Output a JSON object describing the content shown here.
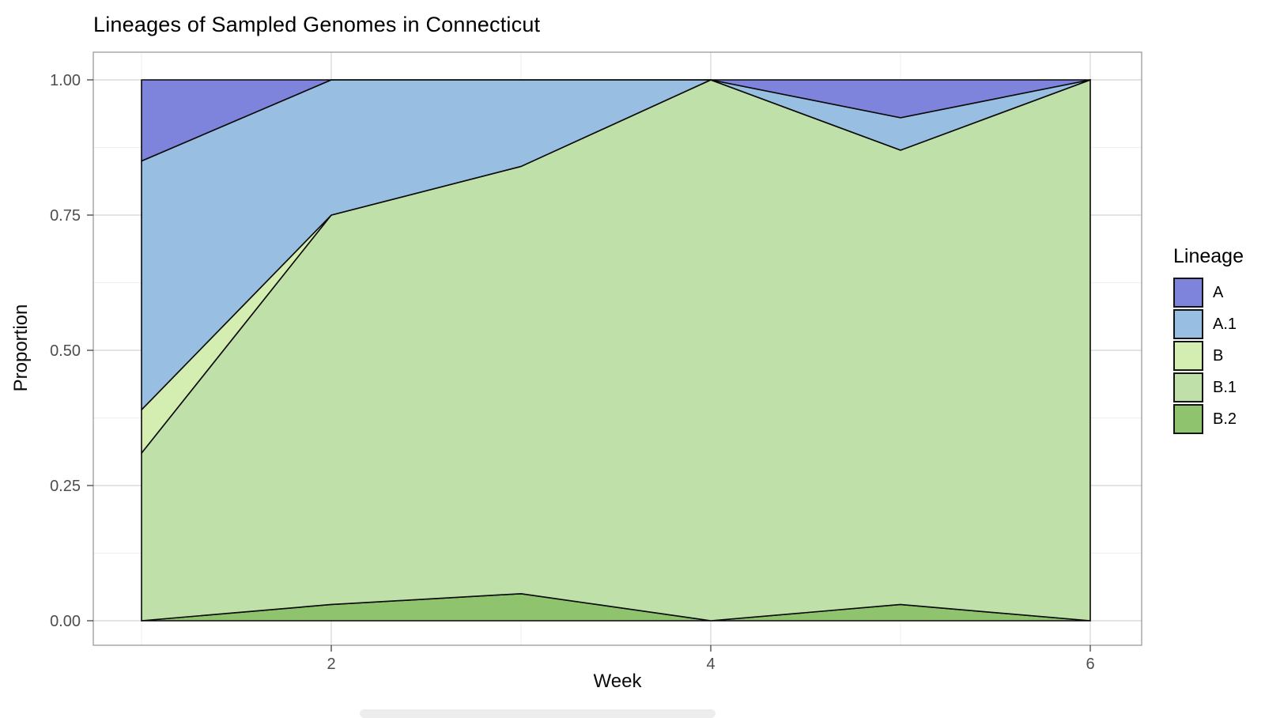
{
  "title": "Lineages of Sampled Genomes in Connecticut",
  "axes": {
    "x": {
      "label": "Week",
      "range": [
        1,
        6
      ],
      "ticks": [
        {
          "v": 2,
          "label": "2"
        },
        {
          "v": 4,
          "label": "4"
        },
        {
          "v": 6,
          "label": "6"
        }
      ],
      "minor": [
        1,
        3,
        5
      ]
    },
    "y": {
      "label": "Proportion",
      "range": [
        0,
        1
      ],
      "ticks": [
        {
          "v": 0.0,
          "label": "0.00"
        },
        {
          "v": 0.25,
          "label": "0.25"
        },
        {
          "v": 0.5,
          "label": "0.50"
        },
        {
          "v": 0.75,
          "label": "0.75"
        },
        {
          "v": 1.0,
          "label": "1.00"
        }
      ],
      "minor": [
        0.125,
        0.375,
        0.625,
        0.875
      ]
    }
  },
  "legend": {
    "title": "Lineage",
    "entries": [
      {
        "label": "A",
        "color": "#7e83dc"
      },
      {
        "label": "A.1",
        "color": "#98bfe1"
      },
      {
        "label": "B",
        "color": "#d3eeb0"
      },
      {
        "label": "B.1",
        "color": "#bfe0a8"
      },
      {
        "label": "B.2",
        "color": "#90c36e"
      }
    ]
  },
  "chart_data": {
    "type": "area",
    "stacked": true,
    "title": "Lineages of Sampled Genomes in Connecticut",
    "xlabel": "Week",
    "ylabel": "Proportion",
    "x": [
      1,
      2,
      3,
      4,
      5,
      6
    ],
    "xlim": [
      1,
      6
    ],
    "ylim": [
      0,
      1
    ],
    "grid": true,
    "legend_position": "right",
    "stack_order_bottom_to_top": [
      "B.2",
      "B.1",
      "B",
      "A.1",
      "A"
    ],
    "series": [
      {
        "name": "A",
        "values": [
          0.15,
          0.0,
          0.0,
          0.0,
          0.07,
          0.0
        ]
      },
      {
        "name": "A.1",
        "values": [
          0.46,
          0.25,
          0.16,
          0.0,
          0.06,
          0.0
        ]
      },
      {
        "name": "B",
        "values": [
          0.08,
          0.0,
          0.0,
          0.0,
          0.0,
          0.0
        ]
      },
      {
        "name": "B.1",
        "values": [
          0.31,
          0.72,
          0.79,
          1.0,
          0.84,
          1.0
        ]
      },
      {
        "name": "B.2",
        "values": [
          0.0,
          0.03,
          0.05,
          0.0,
          0.03,
          0.0
        ]
      }
    ]
  },
  "colors": {
    "grid_major": "#dcdcdc",
    "grid_minor": "#efefef",
    "panel_border": "#9a9a9a",
    "tick_mark": "#333333",
    "tick_label": "#4d4d4d",
    "area_outline": "#0a0a0a"
  }
}
